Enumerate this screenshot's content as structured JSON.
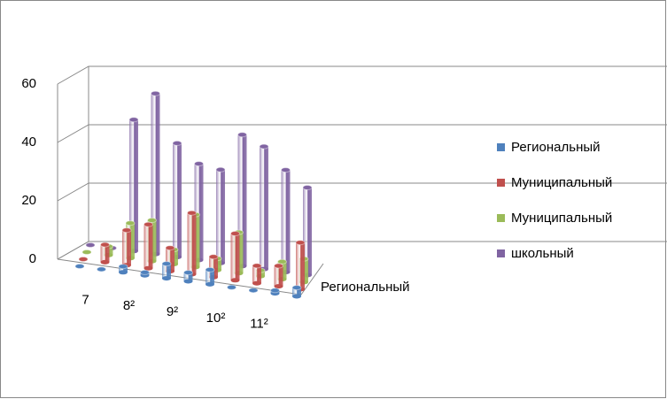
{
  "chart_data": {
    "type": "bar3d",
    "categories": [
      null,
      "7",
      null,
      "8²",
      null,
      "9²",
      null,
      "10²",
      null,
      "11²",
      null
    ],
    "series": [
      {
        "name": "Региональный",
        "color": "#4f81bd",
        "values": [
          0,
          0,
          2,
          1,
          5,
          3,
          5,
          0,
          0,
          1,
          3
        ]
      },
      {
        "name": "Муниципальный",
        "color": "#c0504d",
        "values": [
          0,
          6,
          12,
          15,
          8,
          21,
          7,
          16,
          6,
          7,
          16
        ]
      },
      {
        "name": "Муниципальный",
        "color": "#9bbb59",
        "values": [
          0,
          3,
          12,
          14,
          5,
          18,
          4,
          14,
          2,
          6,
          8
        ]
      },
      {
        "name": "школьный",
        "color": "#8064a2",
        "values": [
          0,
          0,
          45,
          55,
          39,
          33,
          32,
          45,
          42,
          35,
          30
        ]
      }
    ],
    "ylim": [
      0,
      60
    ],
    "yticks": [
      0,
      20,
      40,
      60
    ],
    "grid": true,
    "legend": "right"
  }
}
